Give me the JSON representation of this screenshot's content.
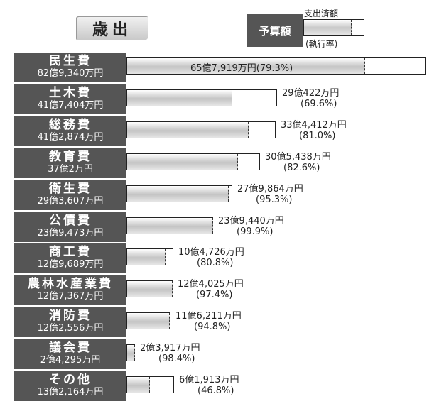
{
  "title": "歳出",
  "legend": {
    "box_label": "予算額",
    "top_label": "支出済額",
    "bottom_label": "(執行率)"
  },
  "chart_data": {
    "type": "bar",
    "orientation": "horizontal",
    "categories": [
      "民生費",
      "土木費",
      "総務費",
      "教育費",
      "衛生費",
      "公債費",
      "商工費",
      "農林水産業費",
      "消防費",
      "議会費",
      "その他"
    ],
    "budget_labels": [
      "82億9,340万円",
      "41億7,404万円",
      "41億2,874万円",
      "37億2万円",
      "29億3,607万円",
      "23億9,473万円",
      "12億9,689万円",
      "12億7,367万円",
      "12億2,556万円",
      "2億4,295万円",
      "13億2,164万円"
    ],
    "expenditure_labels": [
      "65億7,919万円",
      "29億422万円",
      "33億4,412万円",
      "30億5,438万円",
      "27億9,864万円",
      "23億9,440万円",
      "10億4,726万円",
      "12億4,025万円",
      "11億6,211万円",
      "2億3,917万円",
      "6億1,913万円"
    ],
    "rate_labels": [
      "(79.3%)",
      "(69.6%)",
      "(81.0%)",
      "(82.6%)",
      "(95.3%)",
      "(99.9%)",
      "(80.8%)",
      "(97.4%)",
      "(94.8%)",
      "(98.4%)",
      "(46.8%)"
    ],
    "series": [
      {
        "name": "予算額",
        "values": [
          829340,
          417404,
          412874,
          370002,
          293607,
          239473,
          129689,
          127367,
          122556,
          24295,
          132164
        ]
      },
      {
        "name": "支出済額",
        "values": [
          657919,
          290422,
          334412,
          305438,
          279864,
          239440,
          104726,
          124025,
          116211,
          23917,
          61913
        ]
      }
    ],
    "unit": "万円"
  }
}
